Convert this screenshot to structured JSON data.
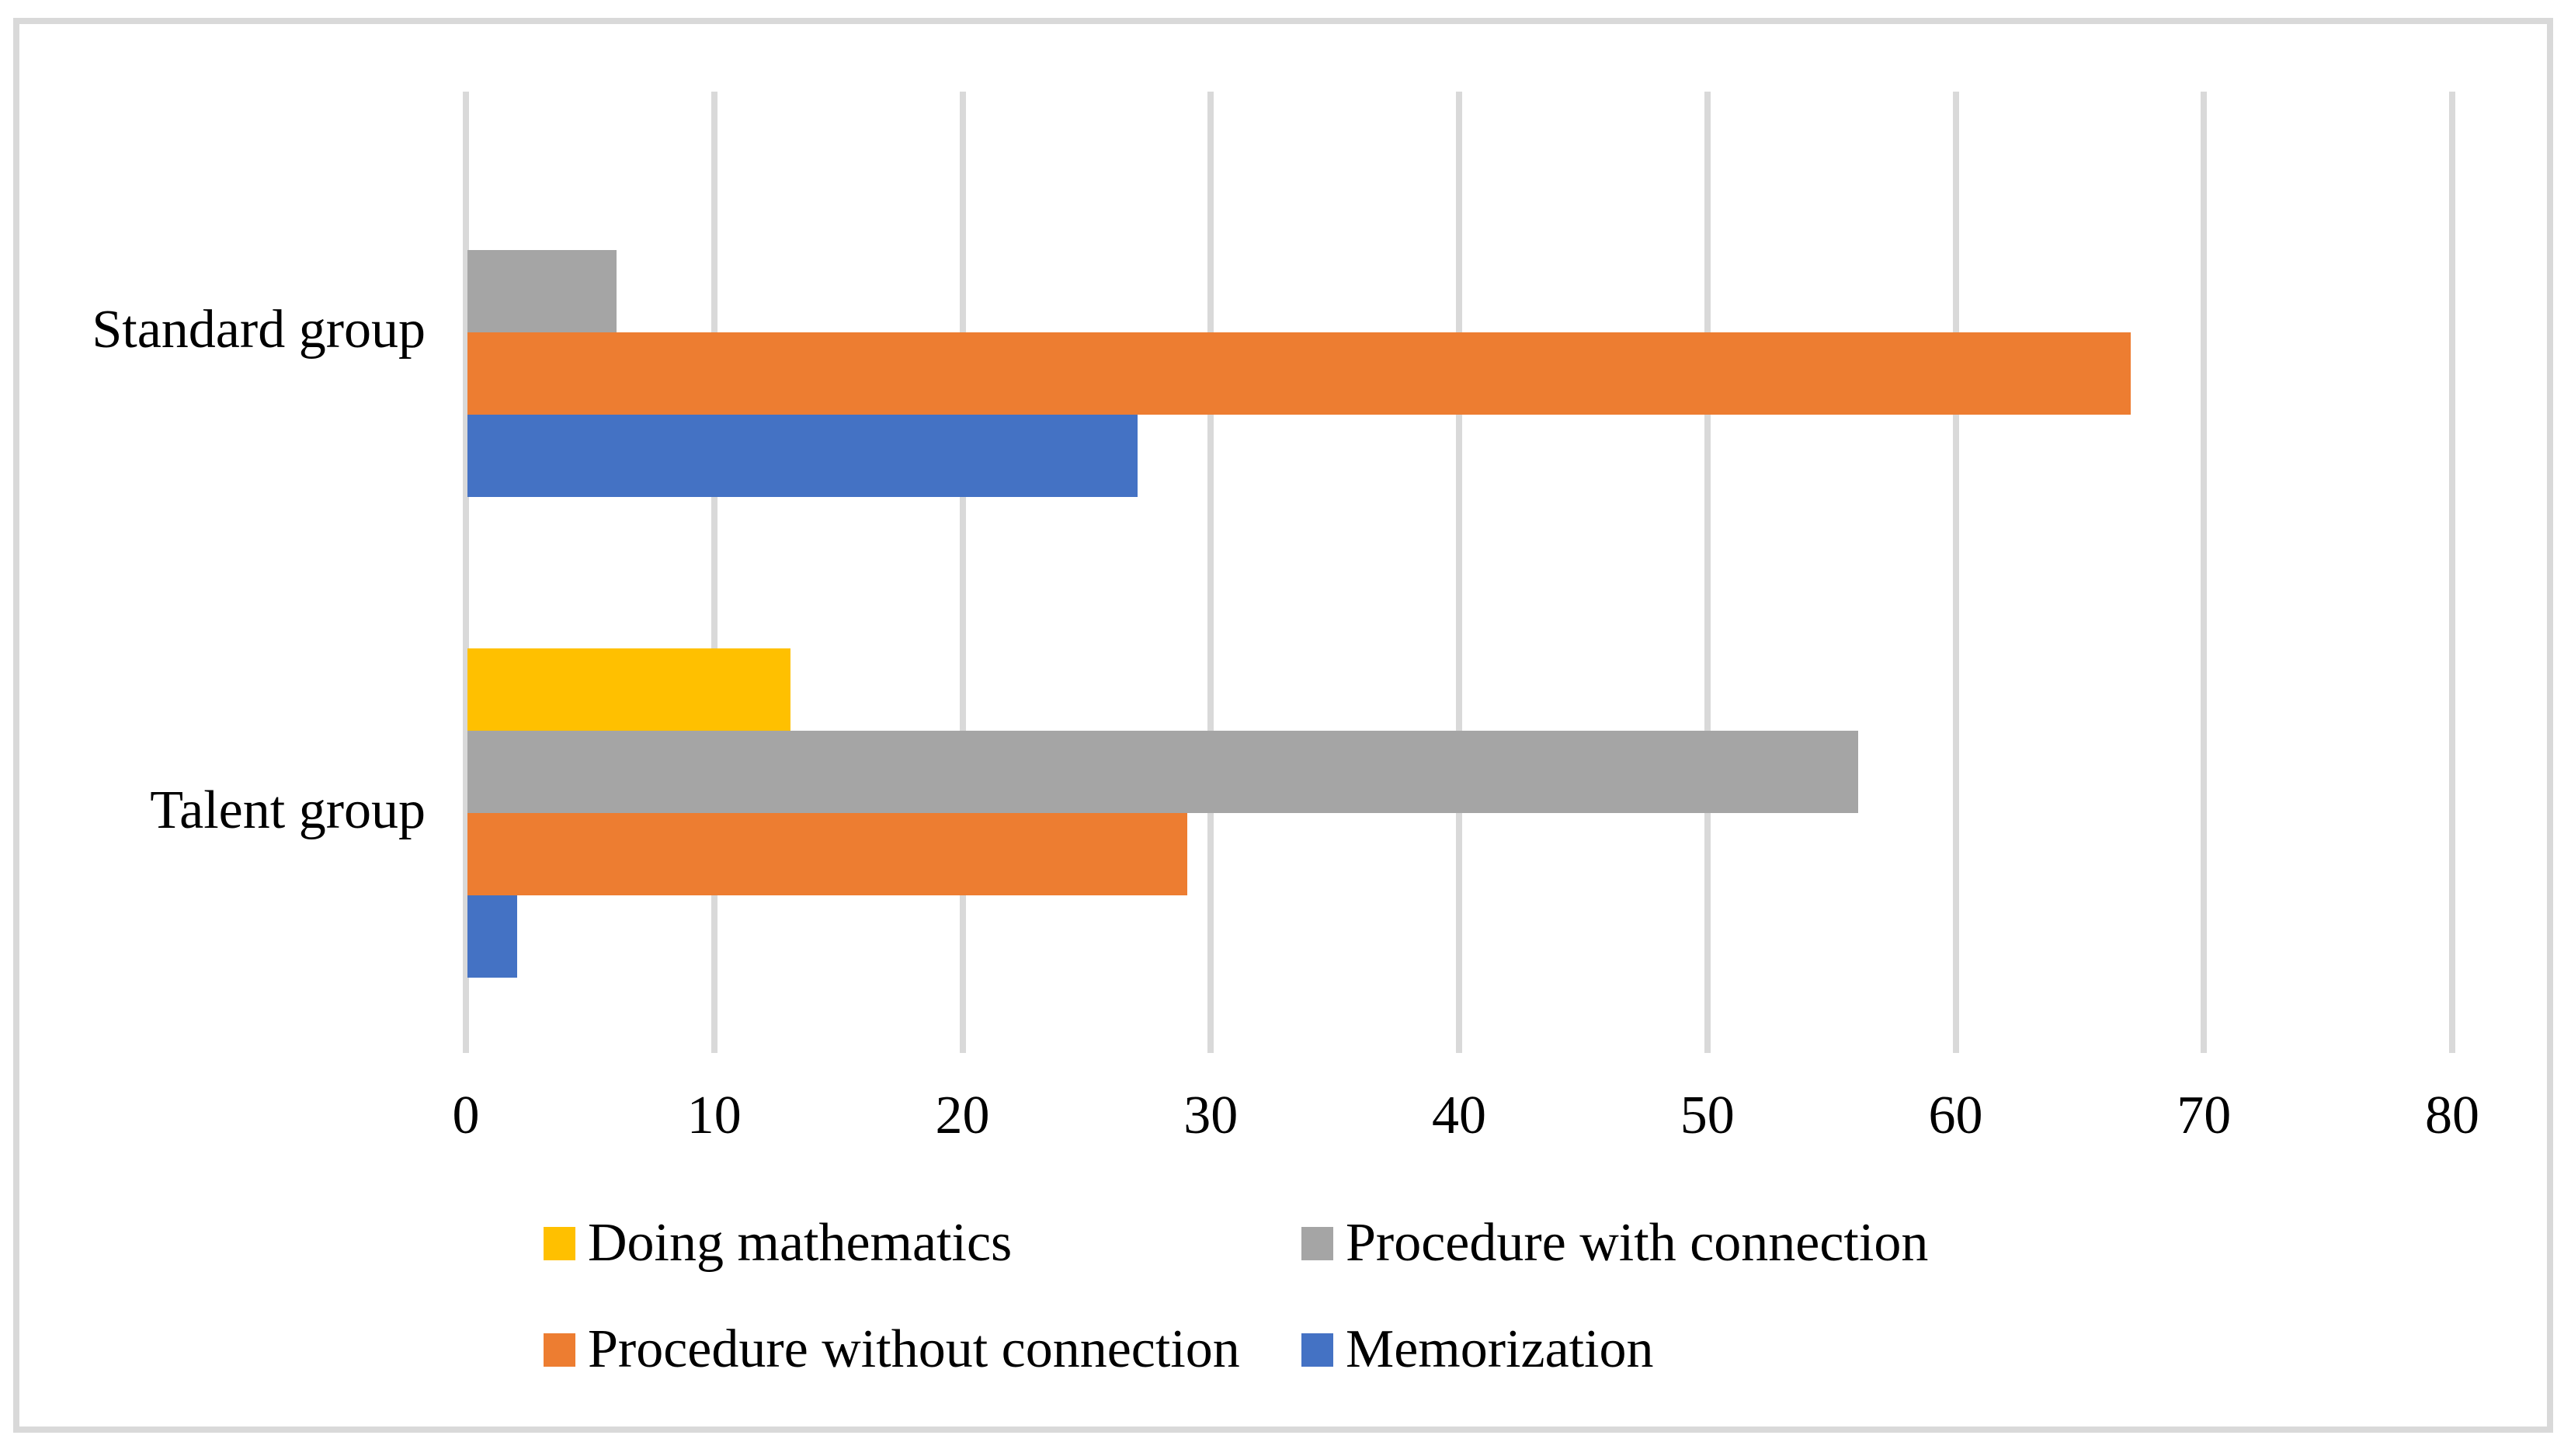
{
  "chart_data": {
    "type": "bar",
    "orientation": "horizontal",
    "title": "",
    "xlabel": "",
    "ylabel": "",
    "categories": [
      "Standard group",
      "Talent group"
    ],
    "series": [
      {
        "name": "Doing mathematics",
        "color": "#FFC000",
        "values": [
          0,
          13
        ]
      },
      {
        "name": "Procedure with connection",
        "color": "#A5A5A5",
        "values": [
          6,
          56
        ]
      },
      {
        "name": "Procedure without connection",
        "color": "#ED7D31",
        "values": [
          67,
          29
        ]
      },
      {
        "name": "Memorization",
        "color": "#4472C4",
        "values": [
          27,
          2
        ]
      }
    ],
    "xlim": [
      0,
      80
    ],
    "x_ticks": [
      0,
      10,
      20,
      30,
      40,
      50,
      60,
      70,
      80
    ],
    "grid": true,
    "legend_position": "bottom",
    "legend_rows": [
      [
        "Doing mathematics",
        "Procedure with connection"
      ],
      [
        "Procedure without connection",
        "Memorization"
      ]
    ]
  },
  "style": {
    "background": "#FFFFFF",
    "gridline_color": "#D9D9D9",
    "border_color": "#D9D9D9",
    "text_color": "#000000"
  }
}
